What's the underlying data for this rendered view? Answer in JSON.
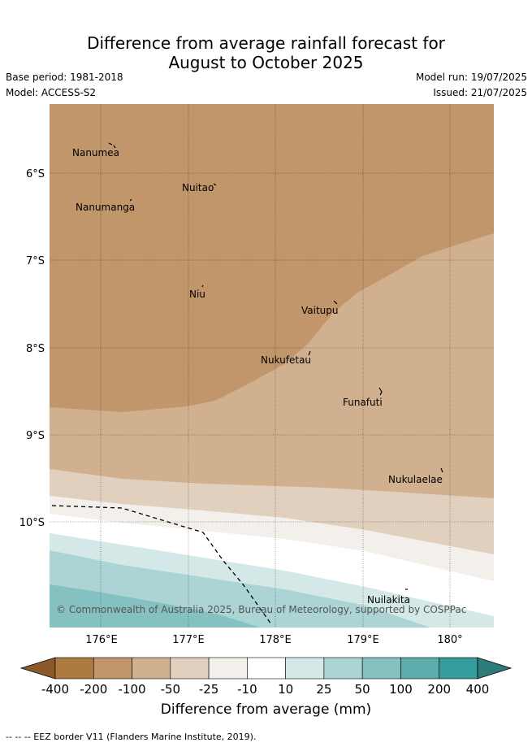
{
  "title": {
    "line1": "Difference from average rainfall forecast for",
    "line2": "August to October 2025"
  },
  "meta": {
    "base_period": "Base period: 1981-2018",
    "model": "Model: ACCESS-S2",
    "model_run": "Model run: 19/07/2025",
    "issued": "Issued: 21/07/2025"
  },
  "map": {
    "latitude_labels": [
      "6°S",
      "7°S",
      "8°S",
      "9°S",
      "10°S"
    ],
    "longitude_labels": [
      "176°E",
      "177°E",
      "178°E",
      "179°E",
      "180°"
    ],
    "islands": [
      {
        "name": "Nanumea"
      },
      {
        "name": "Nuitao"
      },
      {
        "name": "Nanumanga"
      },
      {
        "name": "Niu"
      },
      {
        "name": "Vaitupu"
      },
      {
        "name": "Nukufetau"
      },
      {
        "name": "Funafuti"
      },
      {
        "name": "Nukulaelae"
      },
      {
        "name": "Nuilakita"
      }
    ],
    "copyright": "© Commonwealth of Australia 2025, Bureau of Meteorology, supported by COSPPac"
  },
  "colorbar": {
    "title": "Difference from average (mm)",
    "ticks": [
      "-400",
      "-200",
      "-100",
      "-50",
      "-25",
      "-10",
      "10",
      "25",
      "50",
      "100",
      "200",
      "400"
    ],
    "colors": [
      "#8c5a2a",
      "#ad7a40",
      "#c0966a",
      "#d1b090",
      "#e2d0bf",
      "#f3efea",
      "#ffffff",
      "#d4e8e8",
      "#acd4d4",
      "#86c1c1",
      "#5eadad",
      "#349c9c",
      "#2d7c7c"
    ]
  },
  "footer": "--  --  -- EEZ border V11 (Flanders Marine Institute, 2019)."
}
